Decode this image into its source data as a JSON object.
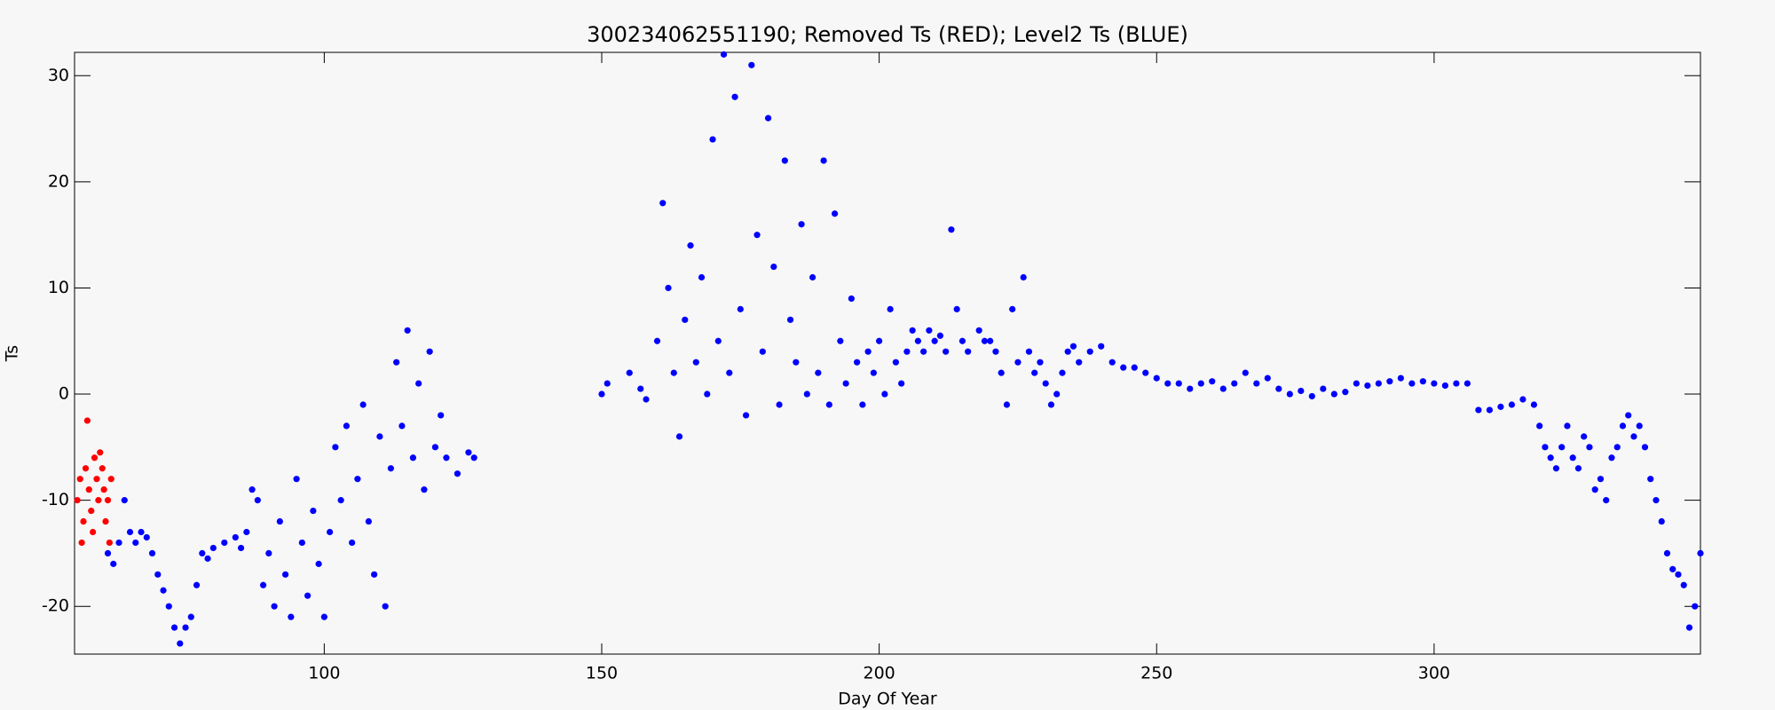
{
  "chart_data": {
    "type": "scatter",
    "title": "300234062551190; Removed Ts (RED); Level2 Ts (BLUE)",
    "x_label": "Day Of Year",
    "y_label": "Ts",
    "xlim": [
      55,
      348
    ],
    "ylim": [
      -24.5,
      32.2
    ],
    "xticks": [
      100,
      150,
      200,
      250,
      300
    ],
    "yticks": [
      -20,
      -10,
      0,
      10,
      20,
      30
    ],
    "series": [
      {
        "color": "#ff0000",
        "x": [
          55.5,
          56,
          56.3,
          56.6,
          57,
          57.3,
          57.6,
          58,
          58.3,
          58.6,
          59,
          59.3,
          59.6,
          60,
          60.3,
          60.6,
          61,
          61.3,
          61.6
        ],
        "values": [
          -10,
          -8,
          -14,
          -12,
          -7,
          -2.5,
          -9,
          -11,
          -13,
          -6,
          -8,
          -10,
          -5.5,
          -7,
          -9,
          -12,
          -10,
          -14,
          -8
        ]
      },
      {
        "color": "#0000ff",
        "x": [
          61,
          62,
          63,
          64,
          65,
          66,
          67,
          68,
          69,
          70,
          71,
          72,
          73,
          74,
          75,
          76,
          77,
          78,
          79,
          80,
          82,
          84,
          85,
          86,
          87,
          88,
          89,
          90,
          91,
          92,
          93,
          94,
          95,
          96,
          97,
          98,
          99,
          100,
          101,
          102,
          103,
          104,
          105,
          106,
          107,
          108,
          109,
          110,
          111,
          112,
          113,
          114,
          115,
          116,
          117,
          118,
          119,
          120,
          121,
          122,
          124,
          126,
          127,
          150,
          151,
          155,
          157,
          158,
          160,
          161,
          162,
          163,
          164,
          165,
          166,
          167,
          168,
          169,
          170,
          171,
          172,
          173,
          174,
          175,
          176,
          177,
          178,
          179,
          180,
          181,
          182,
          183,
          184,
          185,
          186,
          187,
          188,
          189,
          190,
          191,
          192,
          193,
          194,
          195,
          196,
          197,
          198,
          199,
          200,
          201,
          202,
          203,
          204,
          205,
          206,
          207,
          208,
          209,
          210,
          211,
          212,
          213,
          214,
          215,
          216,
          218,
          219,
          220,
          221,
          222,
          223,
          224,
          225,
          226,
          227,
          228,
          229,
          230,
          231,
          232,
          233,
          234,
          235,
          236,
          238,
          240,
          242,
          244,
          246,
          248,
          250,
          252,
          254,
          256,
          258,
          260,
          262,
          264,
          266,
          268,
          270,
          272,
          274,
          276,
          278,
          280,
          282,
          284,
          286,
          288,
          290,
          292,
          294,
          296,
          298,
          300,
          302,
          304,
          306,
          308,
          310,
          312,
          314,
          316,
          318,
          319,
          320,
          321,
          322,
          323,
          324,
          325,
          326,
          327,
          328,
          329,
          330,
          331,
          332,
          333,
          334,
          335,
          336,
          337,
          338,
          339,
          340,
          341,
          342,
          343,
          344,
          345,
          346,
          347,
          348
        ],
        "values": [
          -15,
          -16,
          -14,
          -10,
          -13,
          -14,
          -13,
          -13.5,
          -15,
          -17,
          -18.5,
          -20,
          -22,
          -23.5,
          -22,
          -21,
          -18,
          -15,
          -15.5,
          -14.5,
          -14,
          -13.5,
          -14.5,
          -13,
          -9,
          -10,
          -18,
          -15,
          -20,
          -12,
          -17,
          -21,
          -8,
          -14,
          -19,
          -11,
          -16,
          -21,
          -13,
          -5,
          -10,
          -3,
          -14,
          -8,
          -1,
          -12,
          -17,
          -4,
          -20,
          -7,
          3,
          -3,
          6,
          -6,
          1,
          -9,
          4,
          -5,
          -2,
          -6,
          -7.5,
          -5.5,
          -6,
          0,
          1,
          2,
          0.5,
          -0.5,
          5,
          18,
          10,
          2,
          -4,
          7,
          14,
          3,
          11,
          0,
          24,
          5,
          32,
          2,
          28,
          8,
          -2,
          31,
          15,
          4,
          26,
          12,
          -1,
          22,
          7,
          3,
          16,
          0,
          11,
          2,
          22,
          -1,
          17,
          5,
          1,
          9,
          3,
          -1,
          4,
          2,
          5,
          0,
          8,
          3,
          1,
          4,
          6,
          5,
          4,
          6,
          5,
          5.5,
          4,
          15.5,
          8,
          5,
          4,
          6,
          5,
          5,
          4,
          2,
          -1,
          8,
          3,
          11,
          4,
          2,
          3,
          1,
          -1,
          0,
          2,
          4,
          4.5,
          3,
          4,
          4.5,
          3,
          2.5,
          2.5,
          2,
          1.5,
          1,
          1,
          0.5,
          1,
          1.2,
          0.5,
          1,
          2,
          1,
          1.5,
          0.5,
          0,
          0.3,
          -0.2,
          0.5,
          0,
          0.2,
          1,
          0.8,
          1,
          1.2,
          1.5,
          1,
          1.2,
          1,
          0.8,
          1,
          1,
          -1.5,
          -1.5,
          -1.2,
          -1,
          -0.5,
          -1,
          -3,
          -5,
          -6,
          -7,
          -5,
          -3,
          -6,
          -7,
          -4,
          -5,
          -9,
          -8,
          -10,
          -6,
          -5,
          -3,
          -2,
          -4,
          -3,
          -5,
          -8,
          -10,
          -12,
          -15,
          -16.5,
          -17,
          -18,
          -22,
          -20,
          -15
        ]
      }
    ]
  }
}
